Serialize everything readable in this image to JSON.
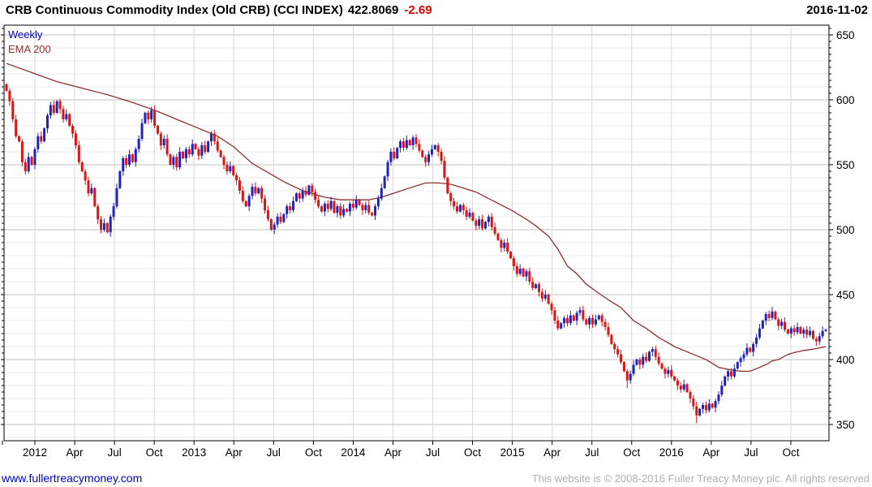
{
  "header": {
    "title": "CRB Continuous Commodity Index (Old CRB) (CCI INDEX)",
    "last_value": "422.8069",
    "change": "-2.69",
    "date": "2016-11-02"
  },
  "legend": {
    "timeframe_label": "Weekly",
    "ema_label": "EMA 200"
  },
  "footer": {
    "site": "www.fullertreacymoney.com",
    "copyright": "This website is © 2008-2016 Fuller Treacy Money plc. All rights reserved"
  },
  "colors": {
    "up_candle": "#2121bd",
    "down_candle": "#dc1414",
    "ema_line": "#8e3030",
    "change_text": "#dd0000",
    "weekly_label": "#0000cc",
    "site_link": "#0000d0",
    "copyright_text": "#b0b0b0",
    "grid_minor": "#ebebeb",
    "grid_major": "#c2c2c2",
    "grid_vertical": "#d8d8d8",
    "frame": "#000000"
  },
  "chart_data": {
    "type": "candlestick",
    "title": "CRB Continuous Commodity Index (Old CRB) (CCI INDEX)",
    "timeframe": "Weekly",
    "overlay": "EMA 200",
    "last_close": 422.8069,
    "change": -2.69,
    "date": "2016-11-02",
    "y_axis": {
      "min": 350,
      "max": 650,
      "major_tick_step": 50,
      "minor_tick_step": 5,
      "minor_grid_step": 10,
      "major_tick_labels": [
        "650",
        "600",
        "550",
        "500",
        "450",
        "400",
        "350"
      ]
    },
    "x_axis": {
      "tick_labels": [
        "2012",
        "Apr",
        "Jul",
        "Oct",
        "2013",
        "Apr",
        "Jul",
        "Oct",
        "2014",
        "Apr",
        "Jul",
        "Oct",
        "2015",
        "Apr",
        "Jul",
        "Oct",
        "2016",
        "Apr",
        "Jul",
        "Oct"
      ]
    },
    "first_open": 612,
    "weekly_closes": [
      607,
      599,
      585,
      572,
      568,
      552,
      545,
      556,
      550,
      562,
      572,
      568,
      578,
      588,
      596,
      590,
      599,
      593,
      585,
      589,
      580,
      574,
      565,
      552,
      545,
      538,
      528,
      532,
      518,
      508,
      500,
      505,
      498,
      510,
      518,
      532,
      545,
      555,
      550,
      558,
      552,
      562,
      570,
      582,
      590,
      585,
      592,
      580,
      574,
      565,
      570,
      558,
      550,
      556,
      548,
      560,
      555,
      562,
      558,
      566,
      562,
      557,
      565,
      560,
      568,
      574,
      568,
      561,
      556,
      550,
      545,
      549,
      542,
      538,
      530,
      522,
      518,
      526,
      533,
      528,
      532,
      524,
      515,
      508,
      500,
      504,
      510,
      506,
      512,
      518,
      515,
      522,
      528,
      524,
      530,
      527,
      534,
      529,
      523,
      518,
      514,
      520,
      516,
      522,
      513,
      518,
      511,
      516,
      514,
      520,
      517,
      523,
      519,
      515,
      519,
      513,
      511,
      518,
      524,
      532,
      541,
      552,
      560,
      555,
      563,
      568,
      563,
      569,
      565,
      571,
      566,
      561,
      556,
      552,
      558,
      562,
      565,
      560,
      553,
      540,
      528,
      522,
      518,
      514,
      519,
      515,
      510,
      513,
      507,
      503,
      508,
      501,
      506,
      510,
      502,
      497,
      492,
      486,
      490,
      483,
      478,
      472,
      466,
      470,
      464,
      468,
      460,
      455,
      458,
      452,
      447,
      450,
      443,
      438,
      430,
      424,
      428,
      432,
      428,
      434,
      430,
      436,
      438,
      431,
      427,
      432,
      427,
      431,
      434,
      429,
      425,
      419,
      412,
      408,
      404,
      398,
      391,
      384,
      389,
      396,
      400,
      396,
      402,
      399,
      406,
      408,
      402,
      397,
      393,
      389,
      392,
      387,
      384,
      380,
      377,
      381,
      375,
      370,
      364,
      357,
      362,
      365,
      361,
      366,
      363,
      368,
      373,
      380,
      387,
      391,
      387,
      393,
      398,
      401,
      404,
      409,
      406,
      412,
      417,
      424,
      430,
      435,
      432,
      437,
      431,
      426,
      429,
      423,
      420,
      424,
      421,
      425,
      420,
      423,
      419,
      422,
      416,
      414,
      418,
      422,
      423
    ],
    "low_overrides": {
      "197": 378,
      "219": 351
    },
    "ema200_anchors": [
      [
        0,
        628
      ],
      [
        8,
        621
      ],
      [
        16,
        614
      ],
      [
        24,
        609
      ],
      [
        32,
        604
      ],
      [
        40,
        598
      ],
      [
        48,
        591
      ],
      [
        55,
        584
      ],
      [
        61,
        578
      ],
      [
        67,
        572
      ],
      [
        72,
        564
      ],
      [
        78,
        551
      ],
      [
        83,
        544
      ],
      [
        88,
        537
      ],
      [
        94,
        530
      ],
      [
        101,
        525
      ],
      [
        106,
        523
      ],
      [
        110,
        523
      ],
      [
        115,
        523
      ],
      [
        119,
        525
      ],
      [
        124,
        529
      ],
      [
        129,
        533
      ],
      [
        133,
        536
      ],
      [
        137,
        536
      ],
      [
        141,
        535
      ],
      [
        145,
        532
      ],
      [
        149,
        529
      ],
      [
        153,
        524
      ],
      [
        157,
        519
      ],
      [
        161,
        514
      ],
      [
        165,
        508
      ],
      [
        168,
        503
      ],
      [
        172,
        495
      ],
      [
        175,
        485
      ],
      [
        178,
        472
      ],
      [
        181,
        466
      ],
      [
        184,
        458
      ],
      [
        188,
        451
      ],
      [
        191,
        446
      ],
      [
        195,
        440
      ],
      [
        199,
        430
      ],
      [
        203,
        424
      ],
      [
        207,
        417
      ],
      [
        212,
        410
      ],
      [
        215,
        407
      ],
      [
        219,
        403
      ],
      [
        222,
        400
      ],
      [
        226,
        394
      ],
      [
        230,
        392
      ],
      [
        233,
        391
      ],
      [
        236,
        391
      ],
      [
        238,
        393
      ],
      [
        241,
        396
      ],
      [
        243,
        399
      ],
      [
        245,
        400
      ],
      [
        248,
        404
      ],
      [
        251,
        406
      ],
      [
        253,
        407
      ],
      [
        256,
        408
      ],
      [
        258,
        409
      ],
      [
        260,
        410
      ]
    ]
  }
}
